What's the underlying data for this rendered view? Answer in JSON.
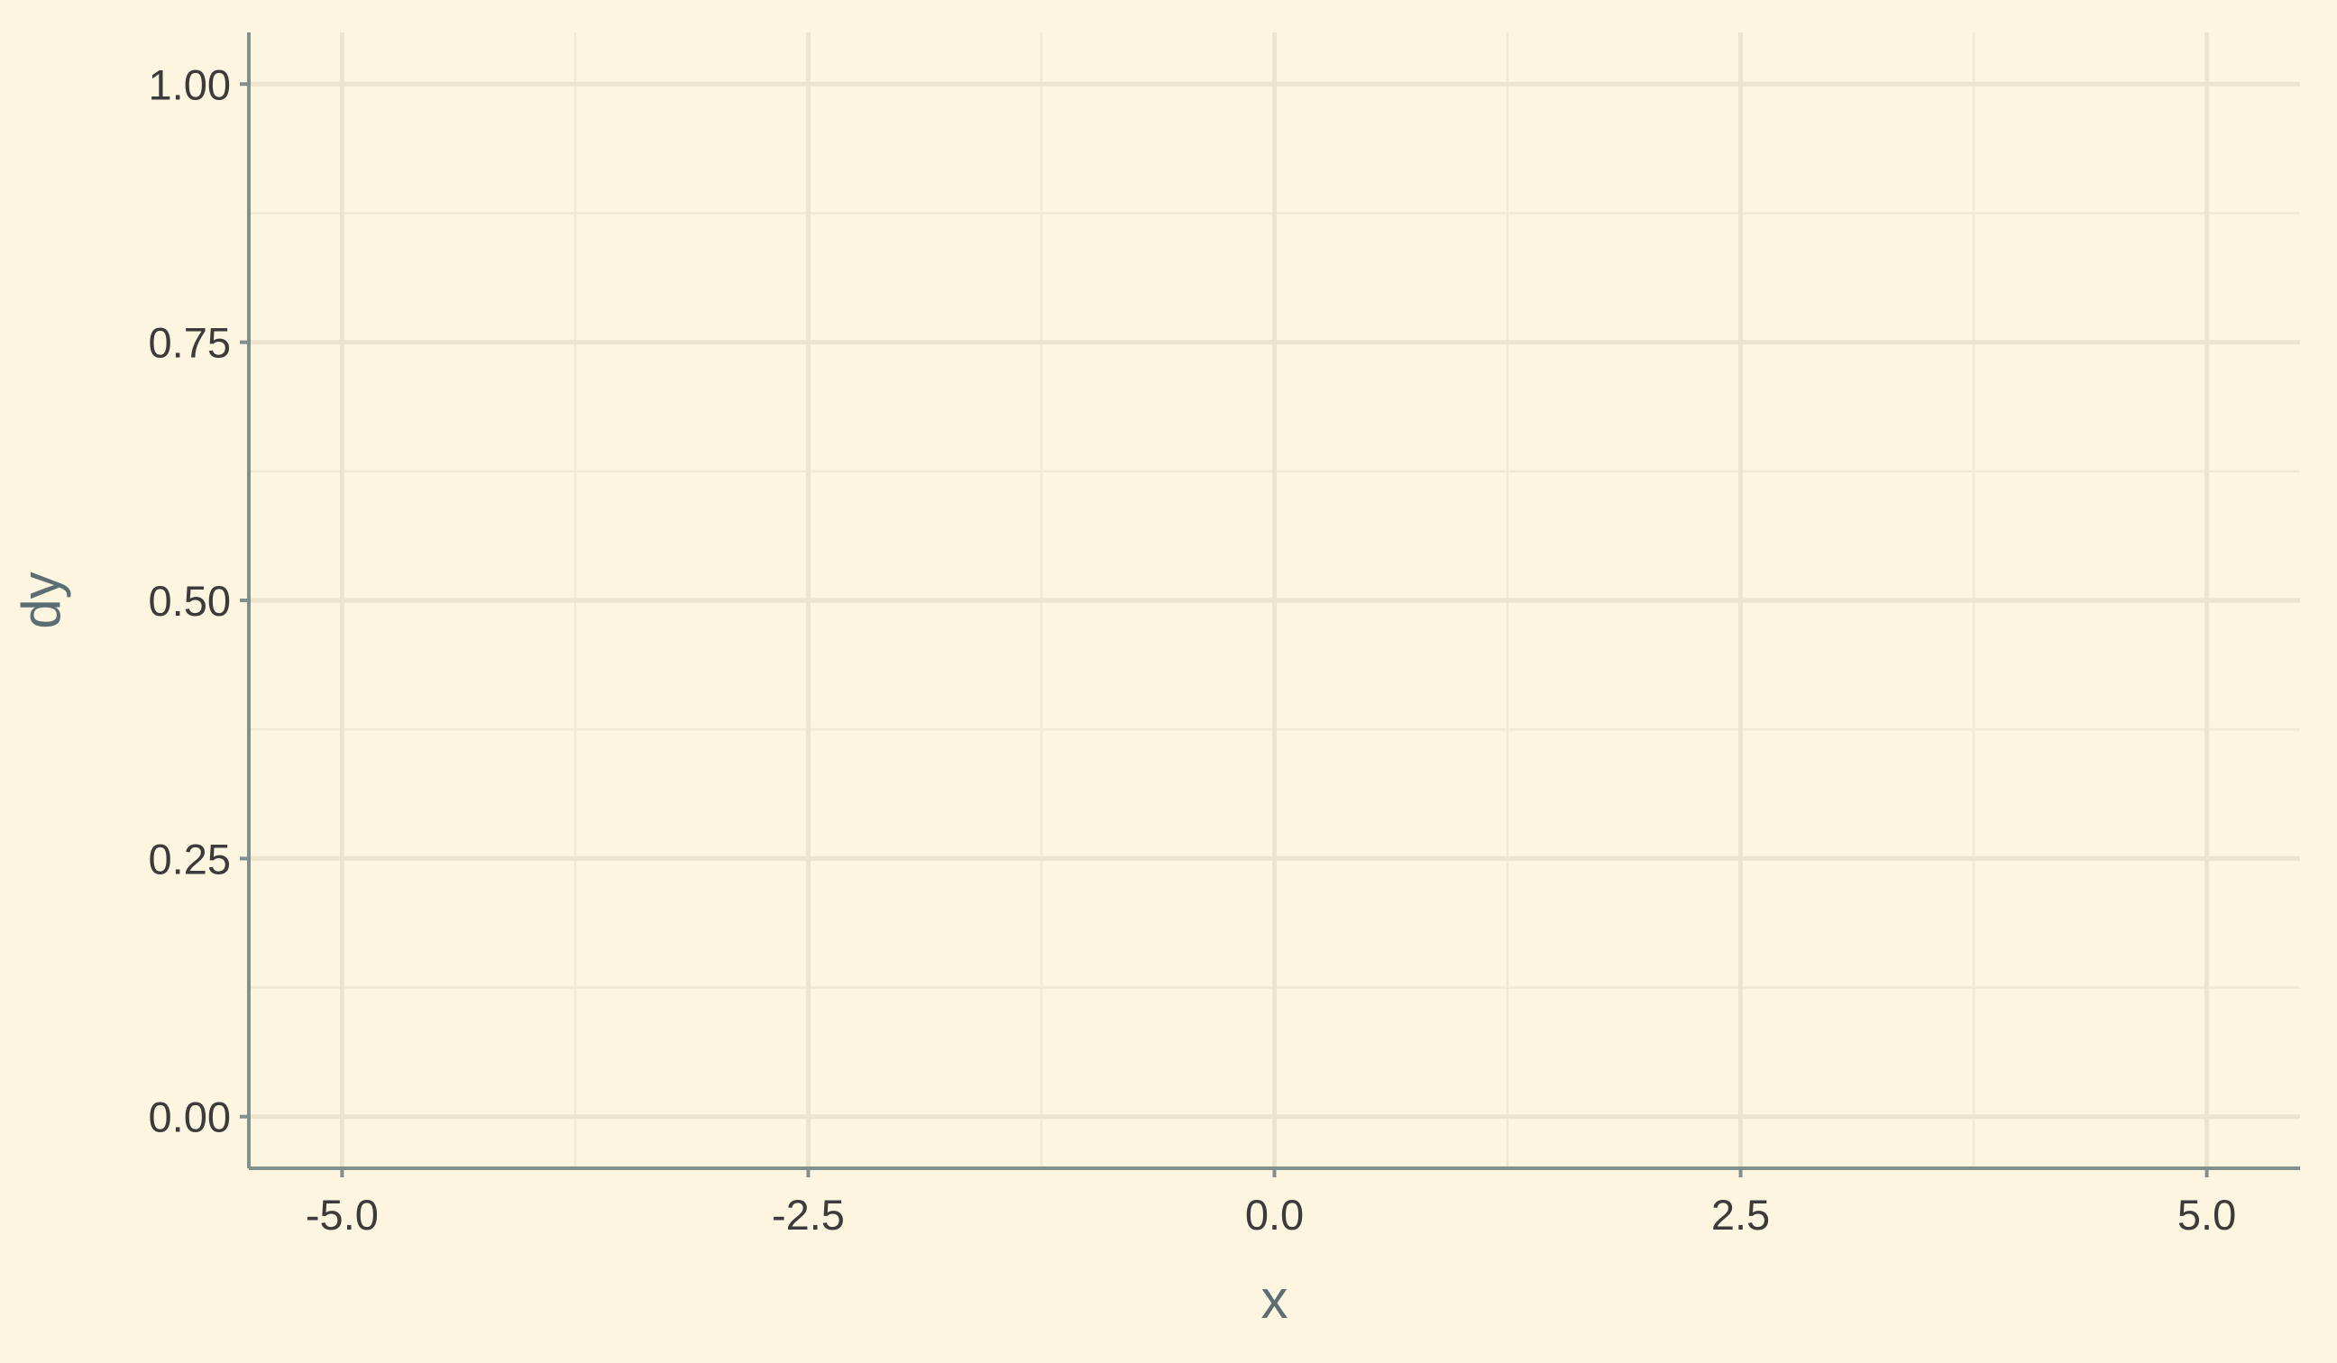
{
  "chart_data": {
    "type": "line",
    "title": "",
    "xlabel": "x",
    "ylabel": "dy",
    "xlim": [
      -5.5,
      5.5
    ],
    "ylim": [
      -0.05,
      1.05
    ],
    "x_ticks": [
      -5.0,
      -2.5,
      0.0,
      2.5,
      5.0
    ],
    "x_tick_labels": [
      "-5.0",
      "-2.5",
      "0.0",
      "2.5",
      "5.0"
    ],
    "y_ticks": [
      0.0,
      0.25,
      0.5,
      0.75,
      1.0
    ],
    "y_tick_labels": [
      "0.00",
      "0.25",
      "0.50",
      "0.75",
      "1.00"
    ],
    "grid": true,
    "series": []
  },
  "colors": {
    "background": "#fdf5e0",
    "grid_major": "#ece4cc",
    "grid_minor": "#f1e9d3",
    "axis_line": "#7f908f",
    "tick_text": "#3b3b3b",
    "axis_title": "#5a6e73"
  }
}
